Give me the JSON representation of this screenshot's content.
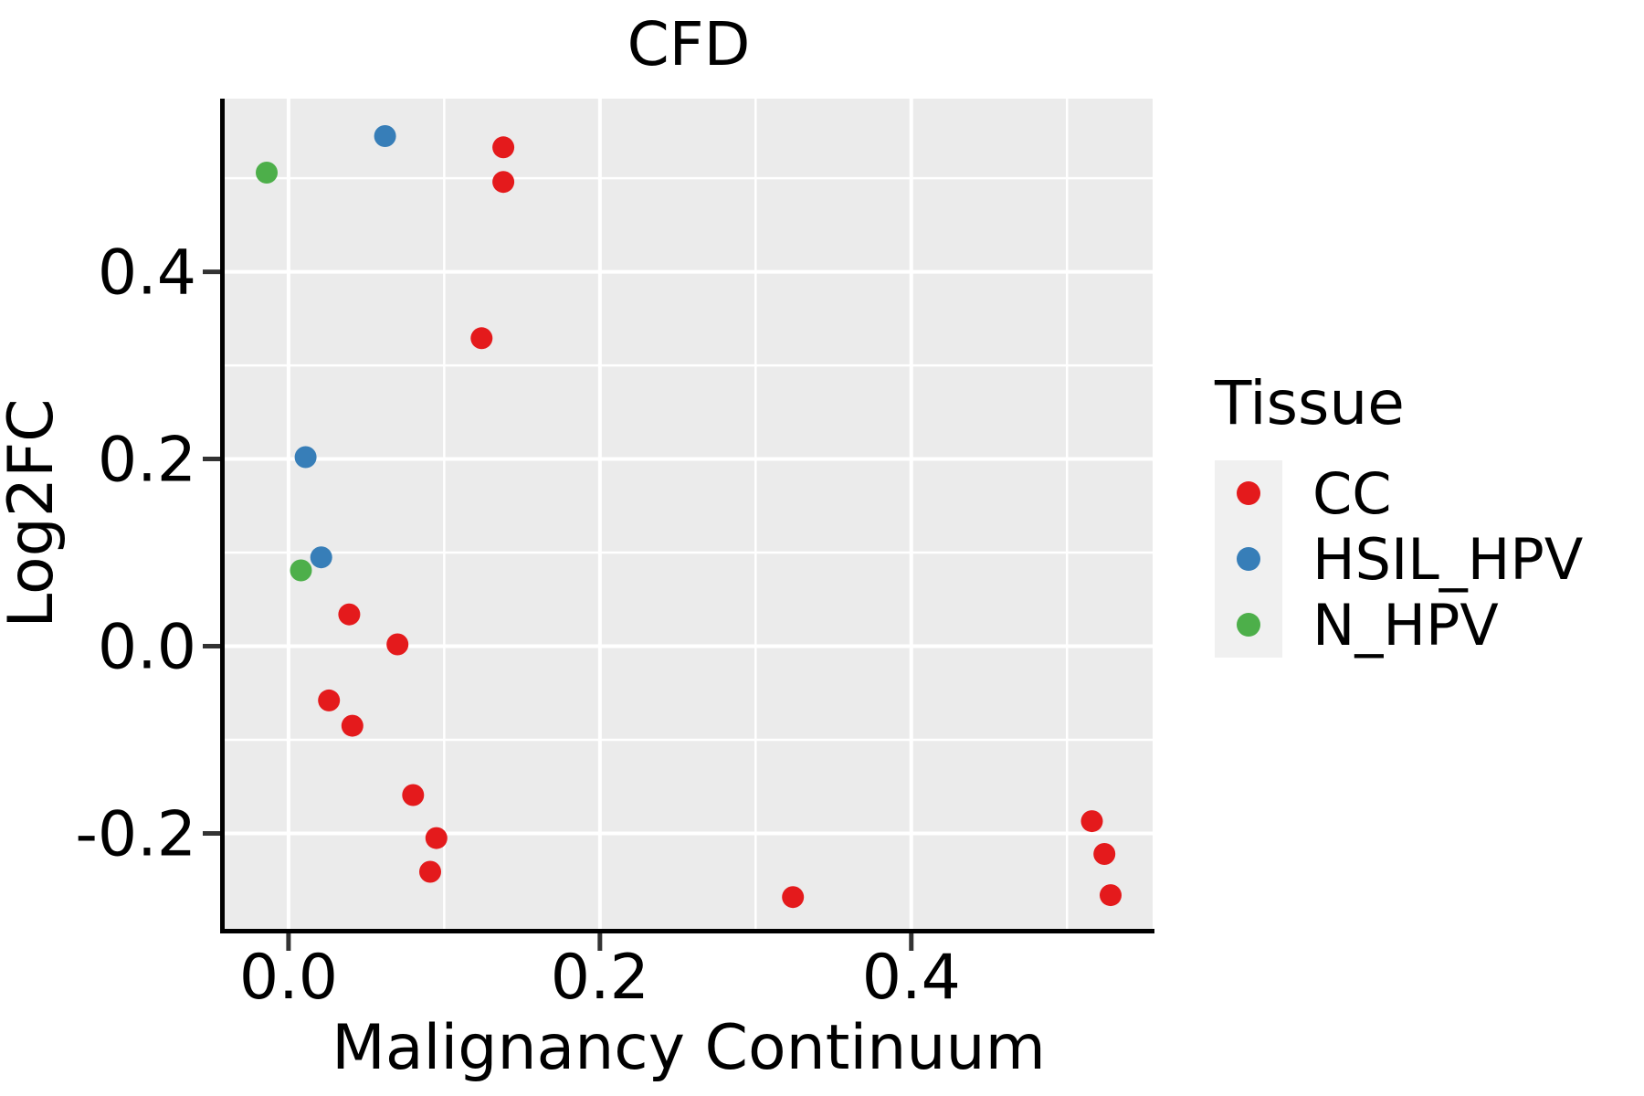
{
  "chart_data": {
    "type": "scatter",
    "title": "CFD",
    "xlabel": "Malignancy Continuum",
    "ylabel": "Log2FC",
    "xlim": [
      -0.041,
      0.555
    ],
    "ylim": [
      -0.302,
      0.585
    ],
    "x_ticks": [
      0.0,
      0.2,
      0.4
    ],
    "x_tick_labels": [
      "0.0",
      "0.2",
      "0.4"
    ],
    "y_ticks": [
      0.4,
      0.2,
      0.0,
      -0.2
    ],
    "y_tick_labels": [
      "0.4",
      "0.2",
      "0.0",
      "-0.2"
    ],
    "x_minor_gridlines": [
      0.1,
      0.3,
      0.5
    ],
    "y_minor_gridlines": [
      0.5,
      0.3,
      0.1,
      -0.1
    ],
    "grid": true,
    "panel_background": "#EBEBEB",
    "gridline_color": "#FFFFFF",
    "spine_color": "#000000",
    "tick_color": "#333333",
    "legend": {
      "title": "Tissue",
      "position": "right",
      "key_background": "#F0F0F0",
      "entries": [
        {
          "label": "CC",
          "color": "#E41A1C"
        },
        {
          "label": "HSIL_HPV",
          "color": "#377EB8"
        },
        {
          "label": "N_HPV",
          "color": "#4DAF4A"
        }
      ]
    },
    "series": [
      {
        "name": "CC",
        "color": "#E41A1C",
        "points": [
          [
            0.138,
            0.533
          ],
          [
            0.138,
            0.496
          ],
          [
            0.124,
            0.329
          ],
          [
            0.039,
            0.034
          ],
          [
            0.07,
            0.002
          ],
          [
            0.026,
            -0.058
          ],
          [
            0.041,
            -0.085
          ],
          [
            0.08,
            -0.159
          ],
          [
            0.095,
            -0.205
          ],
          [
            0.091,
            -0.241
          ],
          [
            0.324,
            -0.268
          ],
          [
            0.516,
            -0.187
          ],
          [
            0.524,
            -0.222
          ],
          [
            0.528,
            -0.266
          ]
        ]
      },
      {
        "name": "HSIL_HPV",
        "color": "#377EB8",
        "points": [
          [
            0.062,
            0.545
          ],
          [
            0.011,
            0.202
          ],
          [
            0.021,
            0.095
          ]
        ]
      },
      {
        "name": "N_HPV",
        "color": "#4DAF4A",
        "points": [
          [
            -0.014,
            0.506
          ],
          [
            0.008,
            0.081
          ]
        ]
      }
    ]
  }
}
